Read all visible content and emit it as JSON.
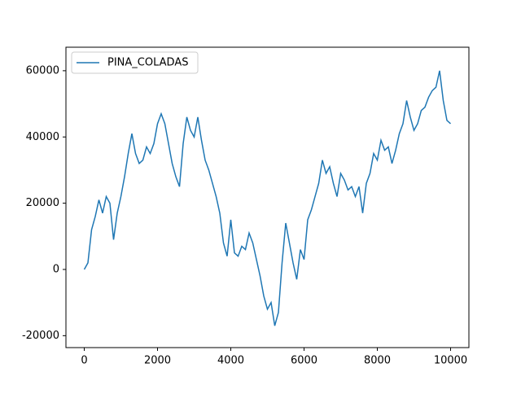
{
  "chart_data": {
    "type": "line",
    "x": [
      0,
      100,
      200,
      300,
      400,
      500,
      600,
      700,
      800,
      900,
      1000,
      1100,
      1200,
      1300,
      1400,
      1500,
      1600,
      1700,
      1800,
      1900,
      2000,
      2100,
      2200,
      2300,
      2400,
      2500,
      2600,
      2700,
      2800,
      2900,
      3000,
      3100,
      3200,
      3300,
      3400,
      3500,
      3600,
      3700,
      3800,
      3900,
      4000,
      4100,
      4200,
      4300,
      4400,
      4500,
      4600,
      4700,
      4800,
      4900,
      5000,
      5100,
      5200,
      5300,
      5400,
      5500,
      5600,
      5700,
      5800,
      5900,
      6000,
      6100,
      6200,
      6300,
      6400,
      6500,
      6600,
      6700,
      6800,
      6900,
      7000,
      7100,
      7200,
      7300,
      7400,
      7500,
      7600,
      7700,
      7800,
      7900,
      8000,
      8100,
      8200,
      8300,
      8400,
      8500,
      8600,
      8700,
      8800,
      8900,
      9000,
      9100,
      9200,
      9300,
      9400,
      9500,
      9600,
      9700,
      9800,
      9900,
      10000
    ],
    "series": [
      {
        "name": "PINA_COLADAS",
        "color": "#1f77b4",
        "values": [
          0,
          2000,
          12000,
          16000,
          21000,
          17000,
          22000,
          20000,
          9000,
          17000,
          22000,
          28000,
          35000,
          41000,
          35000,
          32000,
          33000,
          37000,
          35000,
          38000,
          44000,
          47000,
          44000,
          38000,
          32000,
          28000,
          25000,
          38000,
          46000,
          42000,
          40000,
          46000,
          39000,
          33000,
          30000,
          26000,
          22000,
          17000,
          8000,
          4000,
          15000,
          5000,
          4000,
          7000,
          6000,
          11000,
          8000,
          3000,
          -2000,
          -8000,
          -12000,
          -10000,
          -17000,
          -13000,
          2000,
          14000,
          8000,
          2000,
          -3000,
          6000,
          3000,
          15000,
          18000,
          22000,
          26000,
          33000,
          29000,
          31000,
          26000,
          22000,
          29000,
          27000,
          24000,
          25000,
          22000,
          25000,
          17000,
          26000,
          29000,
          35000,
          33000,
          39000,
          36000,
          37000,
          32000,
          36000,
          41000,
          44000,
          51000,
          46000,
          42000,
          44000,
          48000,
          49000,
          52000,
          54000,
          55000,
          60000,
          51000,
          45000,
          44000
        ]
      }
    ],
    "xlim": [
      -500,
      10500
    ],
    "xticks": [
      0,
      2000,
      4000,
      6000,
      8000,
      10000
    ],
    "ylim": [
      -23600,
      67100
    ],
    "yticks": [
      -20000,
      0,
      20000,
      40000,
      60000
    ],
    "legend": "upper left"
  }
}
